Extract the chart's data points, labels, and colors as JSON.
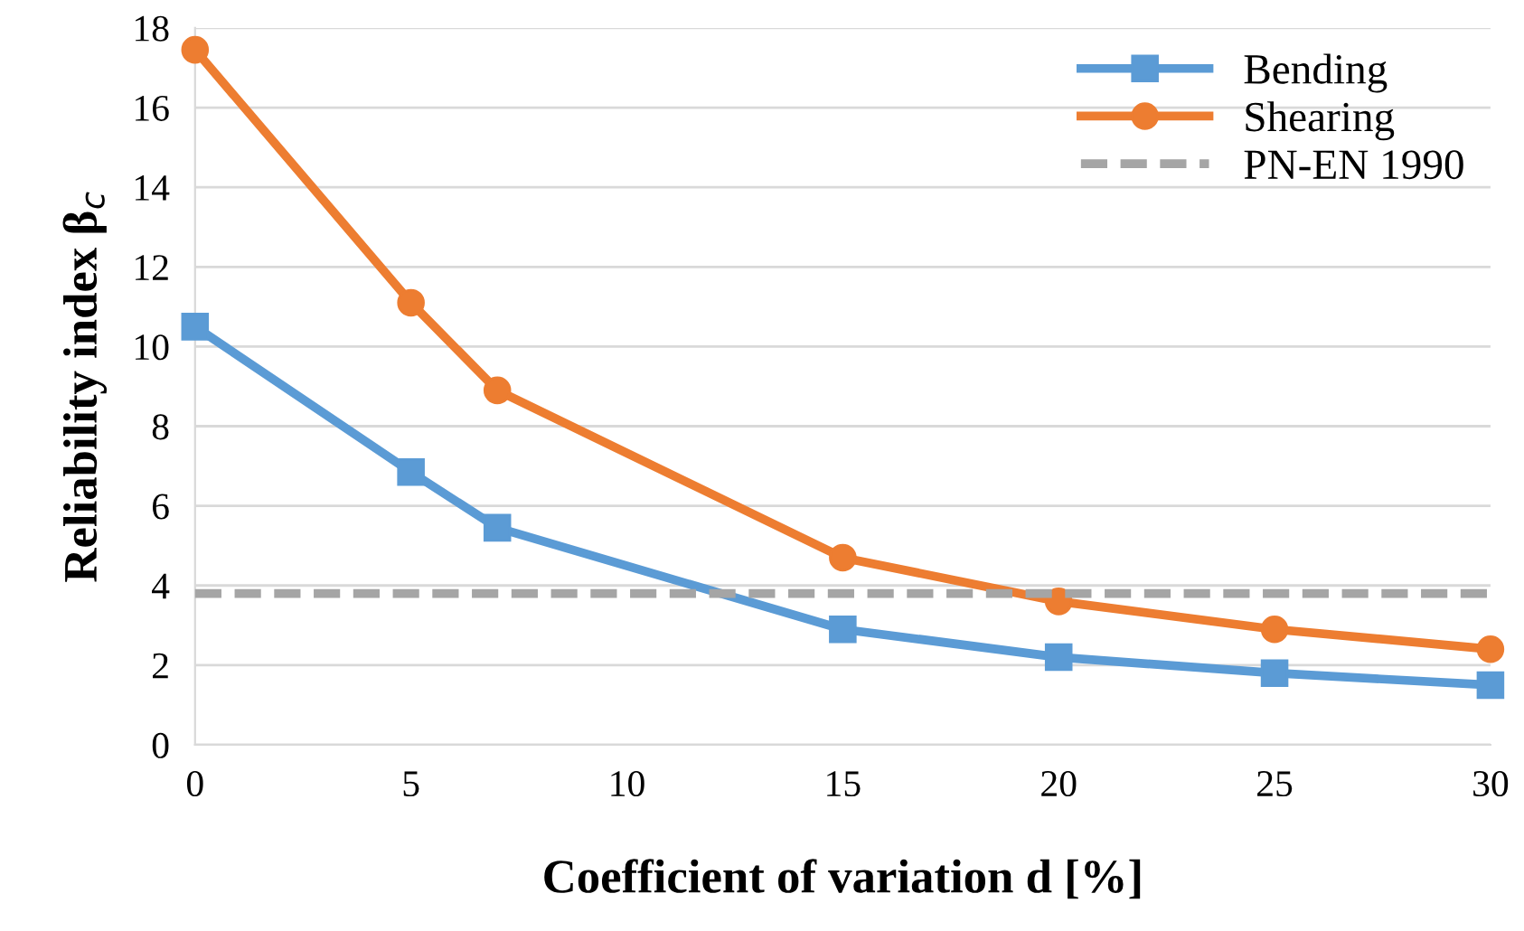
{
  "chart_data": {
    "type": "line",
    "xlabel": "Coefficient of variation d [%]",
    "ylabel": "Reliability index β$_{c}$",
    "xlim": [
      0,
      30
    ],
    "xticks": [
      0,
      5,
      10,
      15,
      20,
      25,
      30
    ],
    "ylim": [
      0,
      18
    ],
    "yticks": [
      0,
      2,
      4,
      6,
      8,
      10,
      12,
      14,
      16,
      18
    ],
    "grid": "y",
    "legend": "top right",
    "series": [
      {
        "name": "Bending",
        "color": "#5b9bd5",
        "marker": "square",
        "line_style": "solid",
        "x": [
          0,
          5,
          7,
          15,
          20,
          25,
          30
        ],
        "values": [
          10.5,
          6.85,
          5.45,
          2.9,
          2.2,
          1.8,
          1.5
        ]
      },
      {
        "name": "Shearing",
        "color": "#ed7d31",
        "marker": "circle",
        "line_style": "solid",
        "x": [
          0,
          5,
          7,
          15,
          20,
          25,
          30
        ],
        "values": [
          17.45,
          11.1,
          8.9,
          4.7,
          3.6,
          2.9,
          2.4
        ]
      },
      {
        "name": "PN-EN 1990",
        "color": "#a5a5a5",
        "marker": "none",
        "line_style": "dashed",
        "x": [
          0,
          30
        ],
        "values": [
          3.8,
          3.8
        ]
      }
    ]
  }
}
